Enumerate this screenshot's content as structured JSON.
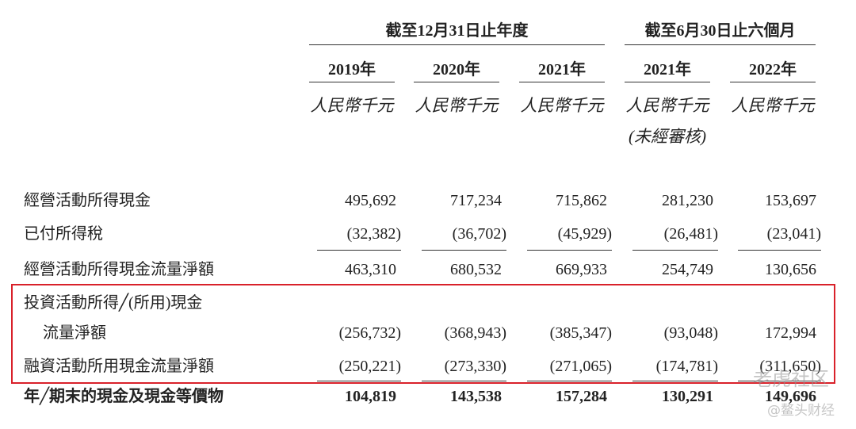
{
  "header": {
    "groups": [
      {
        "label": "截至12月31日止年度",
        "span": [
          0,
          2
        ]
      },
      {
        "label": "截至6月30日止六個月",
        "span": [
          3,
          4
        ]
      }
    ],
    "columns": [
      {
        "year": "2019年",
        "currency": "人民幣千元"
      },
      {
        "year": "2020年",
        "currency": "人民幣千元"
      },
      {
        "year": "2021年",
        "currency": "人民幣千元"
      },
      {
        "year": "2021年",
        "currency": "人民幣千元",
        "note": "(未經審核)"
      },
      {
        "year": "2022年",
        "currency": "人民幣千元"
      }
    ]
  },
  "table": {
    "rows": [
      {
        "label": [
          "經營活動所得現金"
        ],
        "values": [
          "495,692",
          "717,234",
          "715,862",
          "281,230",
          "153,697"
        ]
      },
      {
        "label": [
          "已付所得稅"
        ],
        "values": [
          "(32,382)",
          "(36,702)",
          "(45,929)",
          "(26,481)",
          "(23,041)"
        ]
      },
      {
        "label": [
          "經營活動所得現金流量淨額"
        ],
        "values": [
          "463,310",
          "680,532",
          "669,933",
          "254,749",
          "130,656"
        ]
      },
      {
        "label": [
          "投資活動所得╱(所用)現金",
          "流量淨額"
        ],
        "values": [
          "(256,732)",
          "(368,943)",
          "(385,347)",
          "(93,048)",
          "172,994"
        ]
      },
      {
        "label": [
          "融資活動所用現金流量淨額"
        ],
        "values": [
          "(250,221)",
          "(273,330)",
          "(271,065)",
          "(174,781)",
          "(311,650)"
        ]
      },
      {
        "label": [
          "年╱期末的現金及現金等價物"
        ],
        "values": [
          "104,819",
          "143,538",
          "157,284",
          "130,291",
          "149,696"
        ],
        "bold": true
      }
    ]
  },
  "watermarks": [
    "老虎社区",
    "@鳌头财经"
  ]
}
